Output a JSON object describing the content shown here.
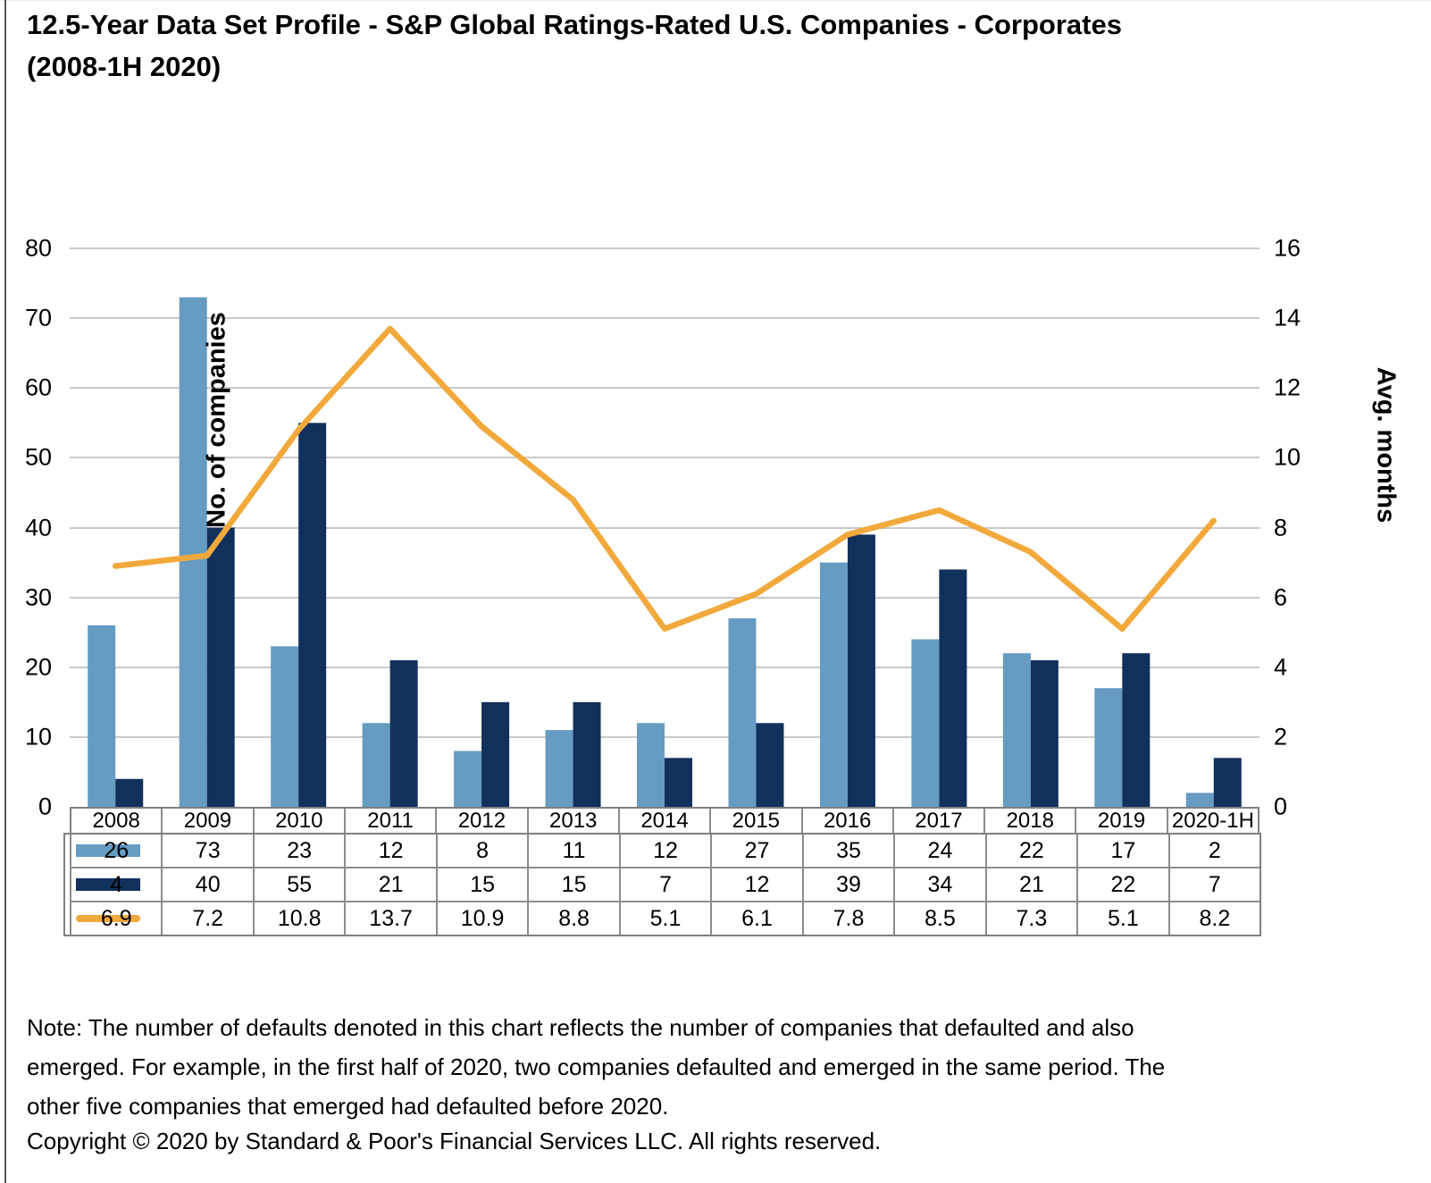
{
  "title": "12.5-Year Data Set Profile - S&P Global Ratings-Rated U.S. Companies - Corporates (2008-1H 2020)",
  "chart_data": {
    "type": "bar",
    "subtype": "grouped-bars-with-line-overlay",
    "categories": [
      "2008",
      "2009",
      "2010",
      "2011",
      "2012",
      "2013",
      "2014",
      "2015",
      "2016",
      "2017",
      "2018",
      "2019",
      "2020-1H"
    ],
    "series": [
      {
        "id": "light-blue-bar",
        "type": "bar",
        "axis": "left",
        "color": "#669BC2",
        "values": [
          26,
          73,
          23,
          12,
          8,
          11,
          12,
          27,
          35,
          24,
          22,
          17,
          2
        ]
      },
      {
        "id": "dark-blue-bar",
        "type": "bar",
        "axis": "left",
        "color": "#12305C",
        "values": [
          4,
          40,
          55,
          21,
          15,
          15,
          7,
          12,
          39,
          34,
          21,
          22,
          7
        ]
      },
      {
        "id": "avg-months-line",
        "type": "line",
        "axis": "right",
        "color": "#F2A93C",
        "values": [
          6.9,
          7.2,
          10.8,
          13.7,
          10.9,
          8.8,
          5.1,
          6.1,
          7.8,
          8.5,
          7.3,
          5.1,
          8.2
        ]
      }
    ],
    "left_axis": {
      "label": "No. of companies",
      "min": 0,
      "max": 80,
      "ticks": [
        0,
        10,
        20,
        30,
        40,
        50,
        60,
        70,
        80
      ]
    },
    "right_axis": {
      "label": "Avg. months",
      "min": 0,
      "max": 16,
      "ticks": [
        0,
        2,
        4,
        6,
        8,
        10,
        12,
        14,
        16
      ]
    },
    "grid": true,
    "legend_position": "data-table-swatches",
    "gridline_color": "#C9C9C9",
    "table_border_color": "#808080"
  },
  "note": "Note: The number of defaults denoted in this chart reflects the number of companies that defaulted and also emerged. For example, in the first half of 2020, two companies defaulted and emerged in the same period. The other five companies that emerged had defaulted before 2020.",
  "copyright": "Copyright © 2020 by Standard & Poor's Financial Services LLC. All rights reserved."
}
